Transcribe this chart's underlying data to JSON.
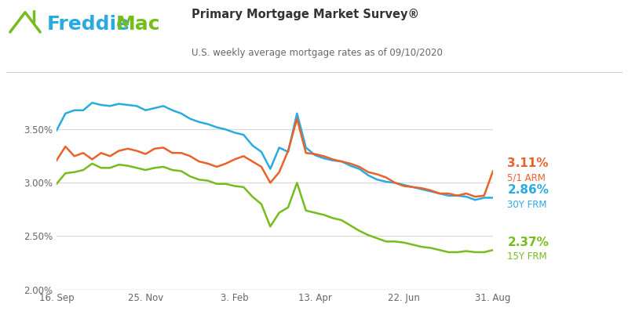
{
  "title": "Primary Mortgage Market Survey®",
  "subtitle": "U.S. weekly average mortgage rates as of 09/10/2020",
  "ylim": [
    2.0,
    3.85
  ],
  "yticks": [
    2.0,
    2.5,
    3.0,
    3.5
  ],
  "ytick_labels": [
    "2.00%",
    "2.50%",
    "3.00%",
    "3.50%"
  ],
  "xtick_labels": [
    "16. Sep",
    "25. Nov",
    "3. Feb",
    "13. Apr",
    "22. Jun",
    "31. Aug"
  ],
  "xtick_positions": [
    0,
    0.204,
    0.408,
    0.592,
    0.796,
    1.0
  ],
  "color_arm": "#e8622a",
  "color_30y": "#29abe2",
  "color_15y": "#77bc1f",
  "color_freddie": "#29abe2",
  "color_mac": "#77bc1f",
  "label_arm_pct": "3.11%",
  "label_arm_name": "5/1 ARM",
  "label_30y_pct": "2.86%",
  "label_30y_name": "30Y FRM",
  "label_15y_pct": "2.37%",
  "label_15y_name": "15Y FRM",
  "bg_color": "#ffffff",
  "grid_color": "#d8d8d8",
  "line_width": 1.8,
  "arm_data": [
    3.21,
    3.34,
    3.25,
    3.28,
    3.22,
    3.28,
    3.25,
    3.3,
    3.32,
    3.3,
    3.27,
    3.32,
    3.33,
    3.28,
    3.28,
    3.25,
    3.2,
    3.18,
    3.15,
    3.18,
    3.22,
    3.25,
    3.2,
    3.15,
    3.0,
    3.1,
    3.3,
    3.6,
    3.28,
    3.27,
    3.25,
    3.22,
    3.2,
    3.18,
    3.15,
    3.1,
    3.08,
    3.05,
    3.0,
    2.97,
    2.96,
    2.95,
    2.93,
    2.9,
    2.9,
    2.88,
    2.9,
    2.87,
    2.88,
    3.11
  ],
  "frm30_data": [
    3.49,
    3.65,
    3.68,
    3.68,
    3.75,
    3.73,
    3.72,
    3.74,
    3.73,
    3.72,
    3.68,
    3.7,
    3.72,
    3.68,
    3.65,
    3.6,
    3.57,
    3.55,
    3.52,
    3.5,
    3.47,
    3.45,
    3.35,
    3.29,
    3.13,
    3.33,
    3.29,
    3.65,
    3.33,
    3.26,
    3.23,
    3.21,
    3.2,
    3.16,
    3.13,
    3.07,
    3.03,
    3.01,
    3.0,
    2.98,
    2.96,
    2.94,
    2.92,
    2.9,
    2.88,
    2.88,
    2.87,
    2.84,
    2.86,
    2.86
  ],
  "frm15_data": [
    2.99,
    3.09,
    3.1,
    3.12,
    3.18,
    3.14,
    3.14,
    3.17,
    3.16,
    3.14,
    3.12,
    3.14,
    3.15,
    3.12,
    3.11,
    3.06,
    3.03,
    3.02,
    2.99,
    2.99,
    2.97,
    2.96,
    2.87,
    2.8,
    2.59,
    2.72,
    2.77,
    3.0,
    2.74,
    2.72,
    2.7,
    2.67,
    2.65,
    2.6,
    2.55,
    2.51,
    2.48,
    2.45,
    2.45,
    2.44,
    2.42,
    2.4,
    2.39,
    2.37,
    2.35,
    2.35,
    2.36,
    2.35,
    2.35,
    2.37
  ]
}
